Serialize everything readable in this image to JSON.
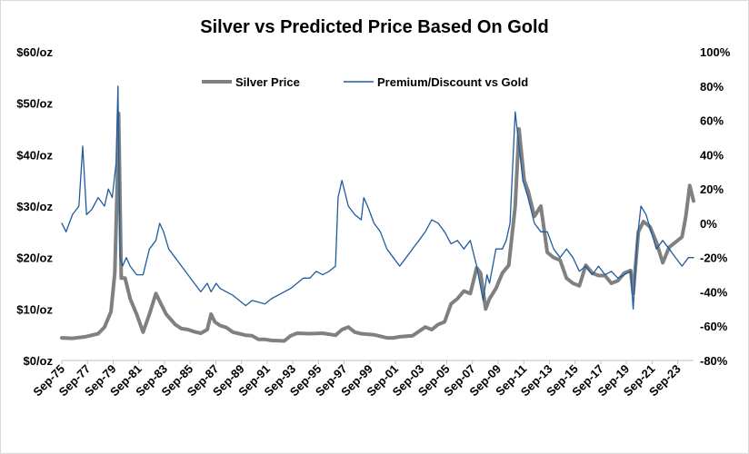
{
  "chart_data": {
    "type": "line",
    "title": "Silver vs Predicted Price Based On Gold",
    "x_tick_labels": [
      "Sep-75",
      "Sep-77",
      "Sep-79",
      "Sep-81",
      "Sep-83",
      "Sep-85",
      "Sep-87",
      "Sep-89",
      "Sep-91",
      "Sep-93",
      "Sep-95",
      "Sep-97",
      "Sep-99",
      "Sep-01",
      "Sep-03",
      "Sep-05",
      "Sep-07",
      "Sep-09",
      "Sep-11",
      "Sep-13",
      "Sep-15",
      "Sep-17",
      "Sep-19",
      "Sep-21",
      "Sep-23"
    ],
    "x_range": [
      1975.67,
      2024.9
    ],
    "left_axis": {
      "ticks": [
        "$0/oz",
        "$10/oz",
        "$20/oz",
        "$30/oz",
        "$40/oz",
        "$50/oz",
        "$60/oz"
      ],
      "ylim": [
        0,
        60
      ]
    },
    "right_axis": {
      "ticks": [
        "-80%",
        "-60%",
        "-40%",
        "-20%",
        "0%",
        "20%",
        "40%",
        "60%",
        "80%",
        "100%"
      ],
      "ylim": [
        -80,
        100
      ]
    },
    "legend_position": "top-center",
    "series": [
      {
        "name": "Silver Price",
        "axis": "left",
        "color": "#808080",
        "x": [
          1975.67,
          1976.5,
          1977.5,
          1978.5,
          1979.0,
          1979.5,
          1979.8,
          1980.0,
          1980.1,
          1980.3,
          1980.6,
          1981.0,
          1981.5,
          1982.0,
          1982.5,
          1983.0,
          1983.4,
          1983.8,
          1984.5,
          1985.0,
          1985.5,
          1986.0,
          1986.5,
          1987.0,
          1987.3,
          1987.6,
          1988.0,
          1988.5,
          1989.0,
          1989.5,
          1990.0,
          1990.5,
          1991.0,
          1991.5,
          1992.0,
          1993.0,
          1993.5,
          1994.0,
          1995.0,
          1996.0,
          1997.0,
          1997.5,
          1998.0,
          1998.5,
          1999.0,
          2000.0,
          2001.0,
          2001.5,
          2002.0,
          2003.0,
          2004.0,
          2004.5,
          2005.0,
          2005.5,
          2006.0,
          2006.5,
          2007.0,
          2007.5,
          2008.0,
          2008.3,
          2008.7,
          2009.0,
          2009.5,
          2010.0,
          2010.5,
          2011.0,
          2011.3,
          2011.7,
          2012.0,
          2012.5,
          2013.0,
          2013.5,
          2014.0,
          2014.5,
          2015.0,
          2015.5,
          2016.0,
          2016.5,
          2017.0,
          2017.5,
          2018.0,
          2018.5,
          2019.0,
          2019.5,
          2020.0,
          2020.2,
          2020.6,
          2021.0,
          2021.5,
          2022.0,
          2022.5,
          2023.0,
          2023.5,
          2024.0,
          2024.3,
          2024.6,
          2024.9
        ],
        "values": [
          4.4,
          4.3,
          4.6,
          5.2,
          6.5,
          9.5,
          17.0,
          35.0,
          48.0,
          16.0,
          16.0,
          12.0,
          9.0,
          5.5,
          9.0,
          13.0,
          11.0,
          9.0,
          7.0,
          6.2,
          6.0,
          5.6,
          5.3,
          6.0,
          9.0,
          7.5,
          6.8,
          6.4,
          5.5,
          5.2,
          4.9,
          4.8,
          4.1,
          4.1,
          3.9,
          3.8,
          4.8,
          5.3,
          5.2,
          5.3,
          4.9,
          6.0,
          6.5,
          5.5,
          5.2,
          5.0,
          4.4,
          4.4,
          4.6,
          4.8,
          6.5,
          6.0,
          7.0,
          7.5,
          11.0,
          12.0,
          13.5,
          13.0,
          18.0,
          17.0,
          10.0,
          12.0,
          14.0,
          17.0,
          18.5,
          30.0,
          45.0,
          35.0,
          33.0,
          28.0,
          30.0,
          21.0,
          20.0,
          19.5,
          16.0,
          15.0,
          14.5,
          18.5,
          17.0,
          16.5,
          16.5,
          15.0,
          15.5,
          17.0,
          17.5,
          13.0,
          25.0,
          27.0,
          26.0,
          23.0,
          19.0,
          22.0,
          23.0,
          24.0,
          28.0,
          34.0,
          31.0
        ]
      },
      {
        "name": "Premium/Discount vs Gold",
        "axis": "right",
        "color": "#1f5b9e",
        "x": [
          1975.67,
          1976.0,
          1976.5,
          1977.0,
          1977.3,
          1977.6,
          1978.0,
          1978.5,
          1979.0,
          1979.3,
          1979.6,
          1979.9,
          1980.05,
          1980.2,
          1980.4,
          1980.7,
          1981.0,
          1981.5,
          1982.0,
          1982.5,
          1983.0,
          1983.3,
          1983.6,
          1984.0,
          1984.5,
          1985.0,
          1985.5,
          1986.0,
          1986.5,
          1987.0,
          1987.3,
          1987.7,
          1988.0,
          1988.5,
          1989.0,
          1989.5,
          1990.0,
          1990.5,
          1991.0,
          1991.5,
          1992.0,
          1993.0,
          1993.5,
          1994.0,
          1994.5,
          1995.0,
          1995.5,
          1996.0,
          1996.5,
          1997.0,
          1997.2,
          1997.5,
          1998.0,
          1998.5,
          1999.0,
          1999.2,
          1999.5,
          2000.0,
          2000.5,
          2001.0,
          2001.5,
          2002.0,
          2002.5,
          2003.0,
          2003.5,
          2004.0,
          2004.5,
          2005.0,
          2005.5,
          2006.0,
          2006.5,
          2007.0,
          2007.5,
          2008.0,
          2008.5,
          2008.8,
          2009.0,
          2009.5,
          2010.0,
          2010.3,
          2010.6,
          2011.0,
          2011.3,
          2011.6,
          2012.0,
          2012.5,
          2013.0,
          2013.5,
          2014.0,
          2014.5,
          2015.0,
          2015.5,
          2016.0,
          2016.5,
          2017.0,
          2017.5,
          2018.0,
          2018.5,
          2019.0,
          2019.5,
          2020.0,
          2020.2,
          2020.5,
          2020.8,
          2021.2,
          2021.6,
          2022.0,
          2022.5,
          2023.0,
          2023.5,
          2024.0,
          2024.5,
          2024.9
        ],
        "values": [
          0,
          -5,
          5,
          10,
          45,
          5,
          8,
          15,
          10,
          20,
          15,
          35,
          80,
          -20,
          -25,
          -20,
          -25,
          -30,
          -30,
          -15,
          -10,
          0,
          -5,
          -15,
          -20,
          -25,
          -30,
          -35,
          -40,
          -35,
          -40,
          -35,
          -38,
          -40,
          -42,
          -45,
          -48,
          -45,
          -46,
          -47,
          -44,
          -40,
          -38,
          -35,
          -32,
          -32,
          -28,
          -30,
          -28,
          -25,
          15,
          25,
          10,
          5,
          2,
          15,
          10,
          0,
          -5,
          -15,
          -20,
          -25,
          -20,
          -15,
          -10,
          -5,
          2,
          0,
          -5,
          -12,
          -10,
          -15,
          -10,
          -25,
          -45,
          -30,
          -35,
          -15,
          -15,
          -10,
          0,
          65,
          45,
          25,
          15,
          0,
          -5,
          -5,
          -15,
          -20,
          -15,
          -20,
          -28,
          -25,
          -30,
          -25,
          -30,
          -28,
          -32,
          -30,
          -28,
          -50,
          -10,
          10,
          5,
          -5,
          -15,
          -10,
          -15,
          -20,
          -25,
          -20,
          -20
        ]
      }
    ]
  }
}
